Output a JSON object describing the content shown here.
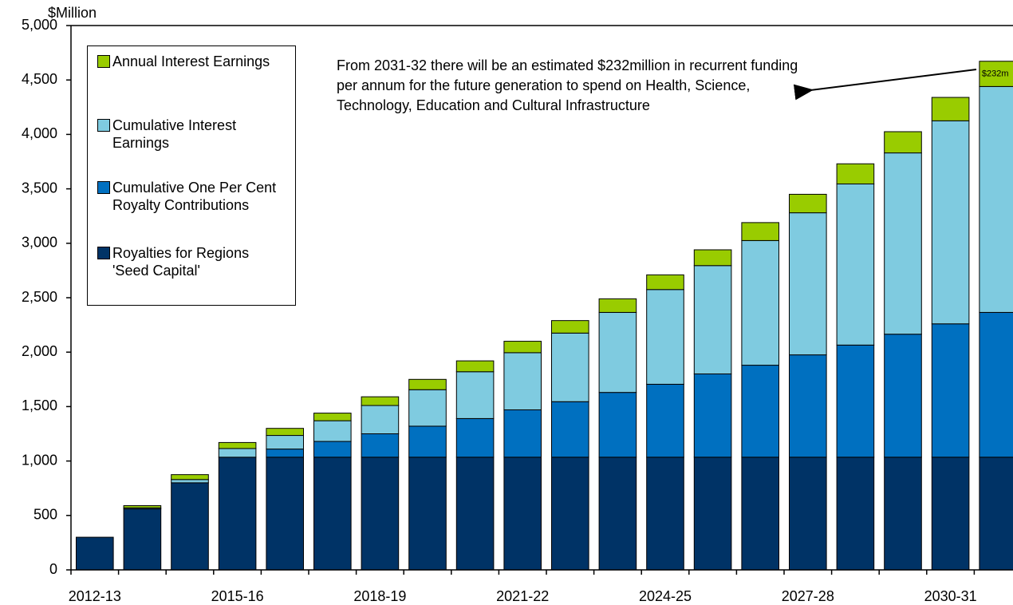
{
  "chart_data": {
    "type": "stacked_bar",
    "y_label": "$Million",
    "annotation": "From 2031-32 there will be an estimated $232million in recurrent funding per annum for the future generation to spend on Health, Science, Technology, Education and Cultural Infrastructure",
    "categories": [
      "2012-13",
      null,
      null,
      "2015-16",
      null,
      null,
      "2018-19",
      null,
      null,
      "2021-22",
      null,
      null,
      "2024-25",
      null,
      null,
      "2027-28",
      null,
      null,
      "2030-31",
      null
    ],
    "series": [
      {
        "name": "Royalties for Regions 'Seed Capital'",
        "color": "#003366",
        "values": [
          300,
          560,
          800,
          1035,
          1035,
          1035,
          1035,
          1035,
          1035,
          1035,
          1035,
          1035,
          1035,
          1035,
          1035,
          1035,
          1035,
          1035,
          1035,
          1035
        ]
      },
      {
        "name": "Cumulative One Per Cent Royalty Contributions",
        "color": "#0070c0",
        "values": [
          0,
          0,
          0,
          0,
          75,
          145,
          215,
          285,
          355,
          435,
          510,
          595,
          670,
          765,
          845,
          940,
          1030,
          1130,
          1225,
          1330
        ]
      },
      {
        "name": "Cumulative Interest Earnings",
        "color": "#7fcbe0",
        "values": [
          0,
          10,
          30,
          80,
          125,
          190,
          260,
          335,
          430,
          525,
          630,
          735,
          870,
          995,
          1145,
          1305,
          1480,
          1665,
          1865,
          2075
        ]
      },
      {
        "name": "Annual Interest Earnings",
        "color": "#99cc00",
        "values": [
          0,
          20,
          45,
          55,
          65,
          70,
          80,
          95,
          100,
          105,
          115,
          125,
          135,
          145,
          165,
          170,
          185,
          195,
          215,
          232
        ],
        "value_labels": [
          null,
          null,
          null,
          null,
          null,
          null,
          null,
          null,
          null,
          null,
          null,
          null,
          null,
          null,
          null,
          null,
          null,
          null,
          null,
          "$232m"
        ]
      }
    ],
    "ylim": [
      0,
      5000
    ],
    "yticks": [
      0,
      500,
      {
        "value": 1000,
        "label": "1,000"
      },
      {
        "value": 1500,
        "label": "1,500"
      },
      {
        "value": 2000,
        "label": "2,000"
      },
      {
        "value": 2500,
        "label": "2,500"
      },
      {
        "value": 3000,
        "label": "3,000"
      },
      {
        "value": 3500,
        "label": "3,500"
      },
      {
        "value": 4000,
        "label": "4,000"
      },
      {
        "value": 4500,
        "label": "4,500"
      },
      {
        "value": 5000,
        "label": "5,000"
      }
    ],
    "legend": "upper left"
  }
}
